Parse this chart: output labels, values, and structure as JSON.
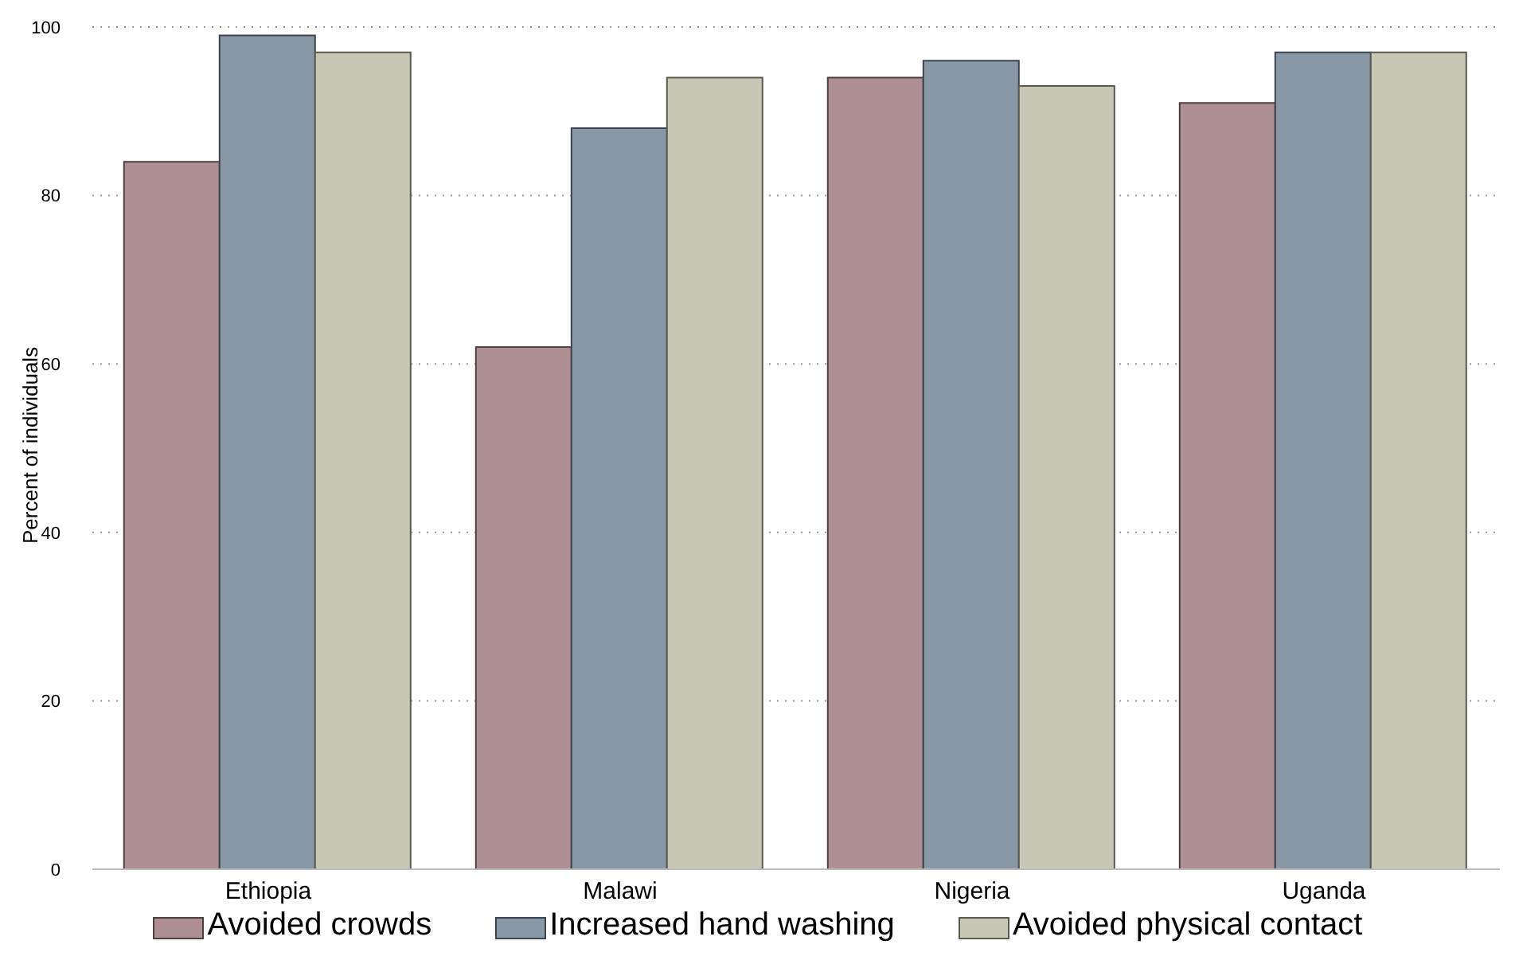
{
  "chart_data": {
    "type": "bar",
    "ylabel": "Percent of individuals",
    "categories": [
      "Ethiopia",
      "Malawi",
      "Nigeria",
      "Uganda"
    ],
    "series": [
      {
        "name": "Avoided crowds",
        "color": "#ae8f92",
        "values": [
          84,
          62,
          94,
          91
        ]
      },
      {
        "name": "Increased hand washing",
        "color": "#8898a7",
        "values": [
          99,
          88,
          96,
          97
        ]
      },
      {
        "name": "Avoided physical contact",
        "color": "#c8c7b5",
        "values": [
          97,
          94,
          93,
          97
        ]
      }
    ],
    "ylim": [
      0,
      100
    ],
    "yticks": [
      0,
      20,
      40,
      60,
      80,
      100
    ],
    "grid": "y",
    "legend": "bottom"
  }
}
